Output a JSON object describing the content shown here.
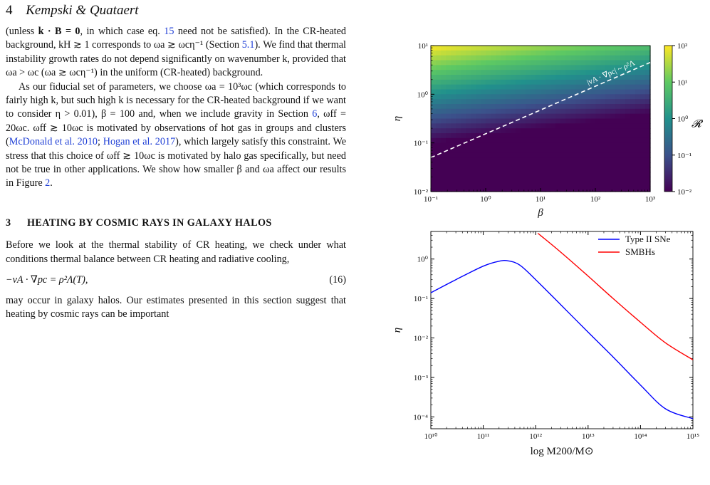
{
  "header": {
    "page_number": "4",
    "authors": "Kempski & Quataert"
  },
  "text": {
    "p1_a": "(unless ",
    "p1_kb": "k · B = 0",
    "p1_b": ", in which case eq. ",
    "p1_ref1": "15",
    "p1_c": " need not be satisfied). In the CR-heated background, kH ≳ 1 corresponds to ωa ≳ ωcη⁻¹ (Section ",
    "p1_ref2": "5.1",
    "p1_d": "). We find that thermal instability growth rates do not depend significantly on wavenumber k, provided that ωa > ωc (ωa ≳ ωcη⁻¹) in the uniform (CR-heated) background.",
    "p2_a": "As our fiducial set of parameters, we choose ωa = 10³ωc (which corresponds to fairly high k, but such high k is necessary for the CR-heated background if we want to consider η > 0.01), β = 100 and, when we include gravity in Section ",
    "p2_ref1": "6",
    "p2_b": ", ωff = 20ωc. ωff ≳ 10ωc is motivated by observations of hot gas in groups and clusters (",
    "p2_ref2": "McDonald et al. 2010",
    "p2_c": "; ",
    "p2_ref3": "Hogan et al. 2017",
    "p2_d": "), which largely satisfy this constraint. We stress that this choice of ωff ≳ 10ωc is motivated by halo gas specifically, but need not be true in other applications. We show how smaller β and ωa affect our results in Figure ",
    "p2_ref4": "2",
    "p2_e": ".",
    "section_number": "3",
    "section_title": "HEATING BY COSMIC RAYS IN GALAXY HALOS",
    "p3": "Before we look at the thermal stability of CR heating, we check under what conditions thermal balance between CR heating and radiative cooling,",
    "equation": "−vA · ∇pc = ρ²Λ(T),",
    "equation_number": "(16)",
    "p4": "may occur in galaxy halos. Our estimates presented in this section suggest that heating by cosmic rays can be important"
  },
  "chart_data": [
    {
      "type": "heatmap",
      "xlabel": "β",
      "ylabel": "η",
      "x_scale": "log",
      "y_scale": "log",
      "xlim": [
        0.1,
        1000
      ],
      "ylim": [
        0.01,
        10
      ],
      "x_ticks": [
        "10⁻¹",
        "10⁰",
        "10¹",
        "10²",
        "10³"
      ],
      "y_ticks": [
        "10⁻²",
        "10⁻¹",
        "10⁰",
        "10¹"
      ],
      "colorbar_label": "𝓡",
      "colorbar_range": [
        0.01,
        100
      ],
      "colorbar_ticks": [
        "10⁻²",
        "10⁻¹",
        "10⁰",
        "10¹",
        "10²"
      ],
      "colormap": "viridis",
      "colormap_stops": [
        "#440154",
        "#3b528b",
        "#21918c",
        "#5ec962",
        "#fde725"
      ],
      "annotation": "|vA · ∇pc| ~ ρ²Λ",
      "annotation_line": {
        "x": [
          0.1,
          1000
        ],
        "y": [
          0.05,
          4.5
        ]
      },
      "annotation_color": "#ffffff"
    },
    {
      "type": "line",
      "xlabel": "log M200/M⊙",
      "ylabel": "η",
      "x_scale": "log",
      "y_scale": "log",
      "xlim": [
        10000000000.0,
        1000000000000000.0
      ],
      "ylim": [
        5e-05,
        5
      ],
      "x_ticks": [
        "10¹⁰",
        "10¹¹",
        "10¹²",
        "10¹³",
        "10¹⁴",
        "10¹⁵"
      ],
      "y_ticks": [
        "10⁻⁴",
        "10⁻³",
        "10⁻²",
        "10⁻¹",
        "10⁰"
      ],
      "legend_position": "top-right",
      "series": [
        {
          "name": "Type II SNe",
          "color": "#0000ff",
          "x": [
            10000000000.0,
            30000000000.0,
            100000000000.0,
            200000000000.0,
            300000000000.0,
            500000000000.0,
            1000000000000.0,
            3000000000000.0,
            10000000000000.0,
            30000000000000.0,
            100000000000000.0,
            300000000000000.0,
            1000000000000000.0
          ],
          "y": [
            0.14,
            0.3,
            0.66,
            0.88,
            0.9,
            0.7,
            0.3,
            0.07,
            0.014,
            0.0033,
            0.00064,
            0.00016,
            9e-05
          ]
        },
        {
          "name": "SMBHs",
          "color": "#ff0000",
          "x": [
            1100000000000.0,
            3000000000000.0,
            10000000000000.0,
            30000000000000.0,
            100000000000000.0,
            300000000000000.0,
            1000000000000000.0
          ],
          "y": [
            4.5,
            1.5,
            0.37,
            0.1,
            0.025,
            0.0075,
            0.0028
          ]
        }
      ]
    }
  ]
}
